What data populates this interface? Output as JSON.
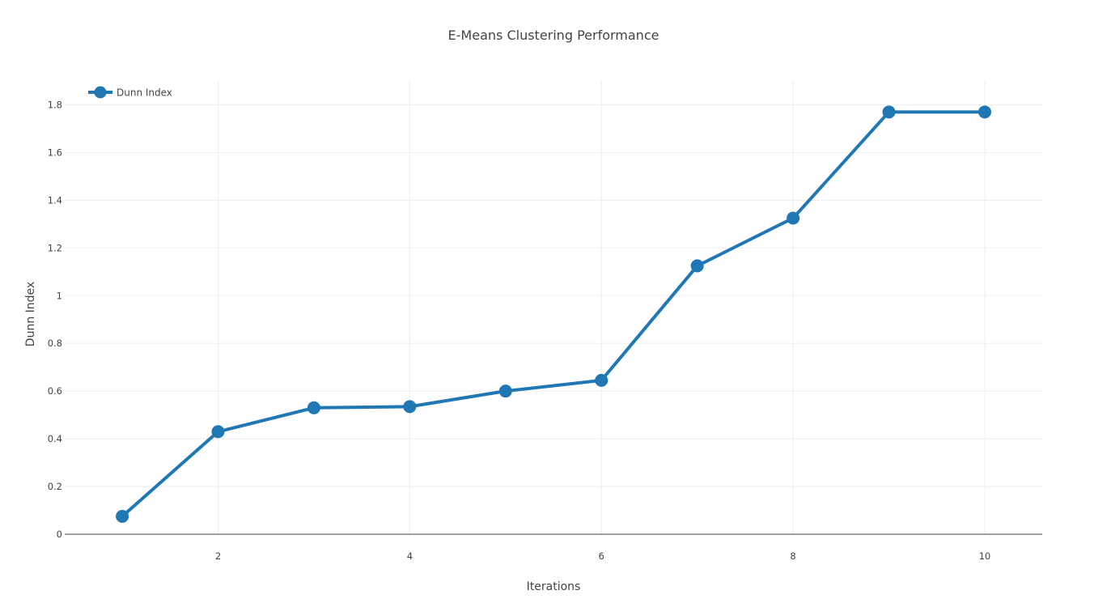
{
  "chart_data": {
    "type": "line",
    "title": "E-Means Clustering Performance",
    "xlabel": "Iterations",
    "ylabel": "Dunn Index",
    "xlim": [
      0.4,
      10.6
    ],
    "ylim": [
      0,
      1.9
    ],
    "xticks": [
      2,
      4,
      6,
      8,
      10
    ],
    "yticks": [
      0,
      0.2,
      0.4,
      0.6,
      0.8,
      1,
      1.2,
      1.4,
      1.6,
      1.8
    ],
    "xtick_labels": [
      "2",
      "4",
      "6",
      "8",
      "10"
    ],
    "ytick_labels": [
      "0",
      "0.2",
      "0.4",
      "0.6",
      "0.8",
      "1",
      "1.2",
      "1.4",
      "1.6",
      "1.8"
    ],
    "grid": true,
    "legend": "top-left",
    "series": [
      {
        "name": "Dunn Index",
        "color": "#1f77b4",
        "x": [
          1,
          2,
          3,
          4,
          5,
          6,
          7,
          8,
          9,
          10
        ],
        "y": [
          0.075,
          0.43,
          0.53,
          0.535,
          0.6,
          0.645,
          1.125,
          1.325,
          1.77,
          1.77
        ]
      }
    ]
  }
}
